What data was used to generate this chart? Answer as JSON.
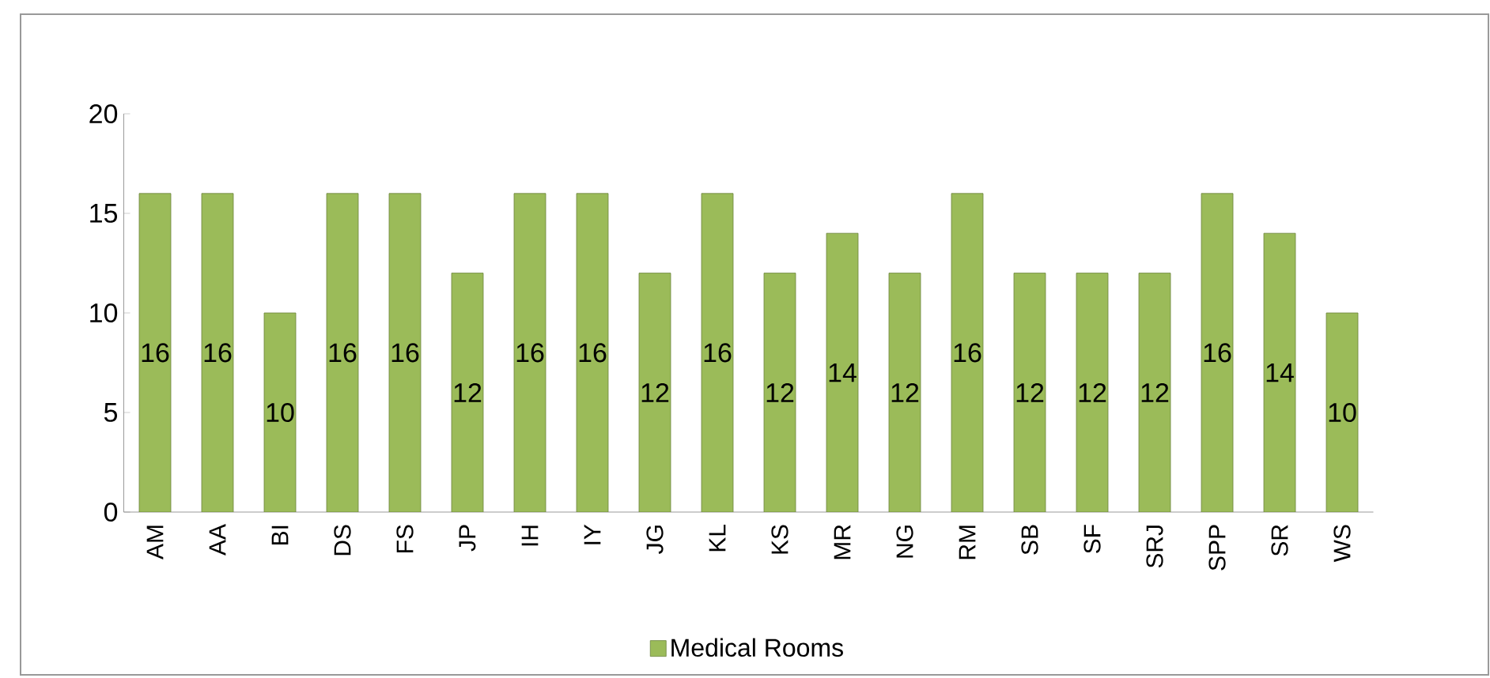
{
  "chart_data": {
    "type": "bar",
    "categories": [
      "AM",
      "AA",
      "BI",
      "DS",
      "FS",
      "JP",
      "IH",
      "IY",
      "JG",
      "KL",
      "KS",
      "MR",
      "NG",
      "RM",
      "SB",
      "SF",
      "SRJ",
      "SPP",
      "SR",
      "WS"
    ],
    "series": [
      {
        "name": "Medical Rooms",
        "color": "#9bbb59",
        "values": [
          16,
          16,
          10,
          16,
          16,
          12,
          16,
          16,
          12,
          16,
          12,
          14,
          12,
          16,
          12,
          12,
          12,
          16,
          14,
          10
        ]
      }
    ],
    "ylim": [
      0,
      20
    ],
    "yticks": [
      0,
      5,
      10,
      15,
      20
    ],
    "grid": false,
    "legend": "bottom",
    "data_labels": true
  }
}
